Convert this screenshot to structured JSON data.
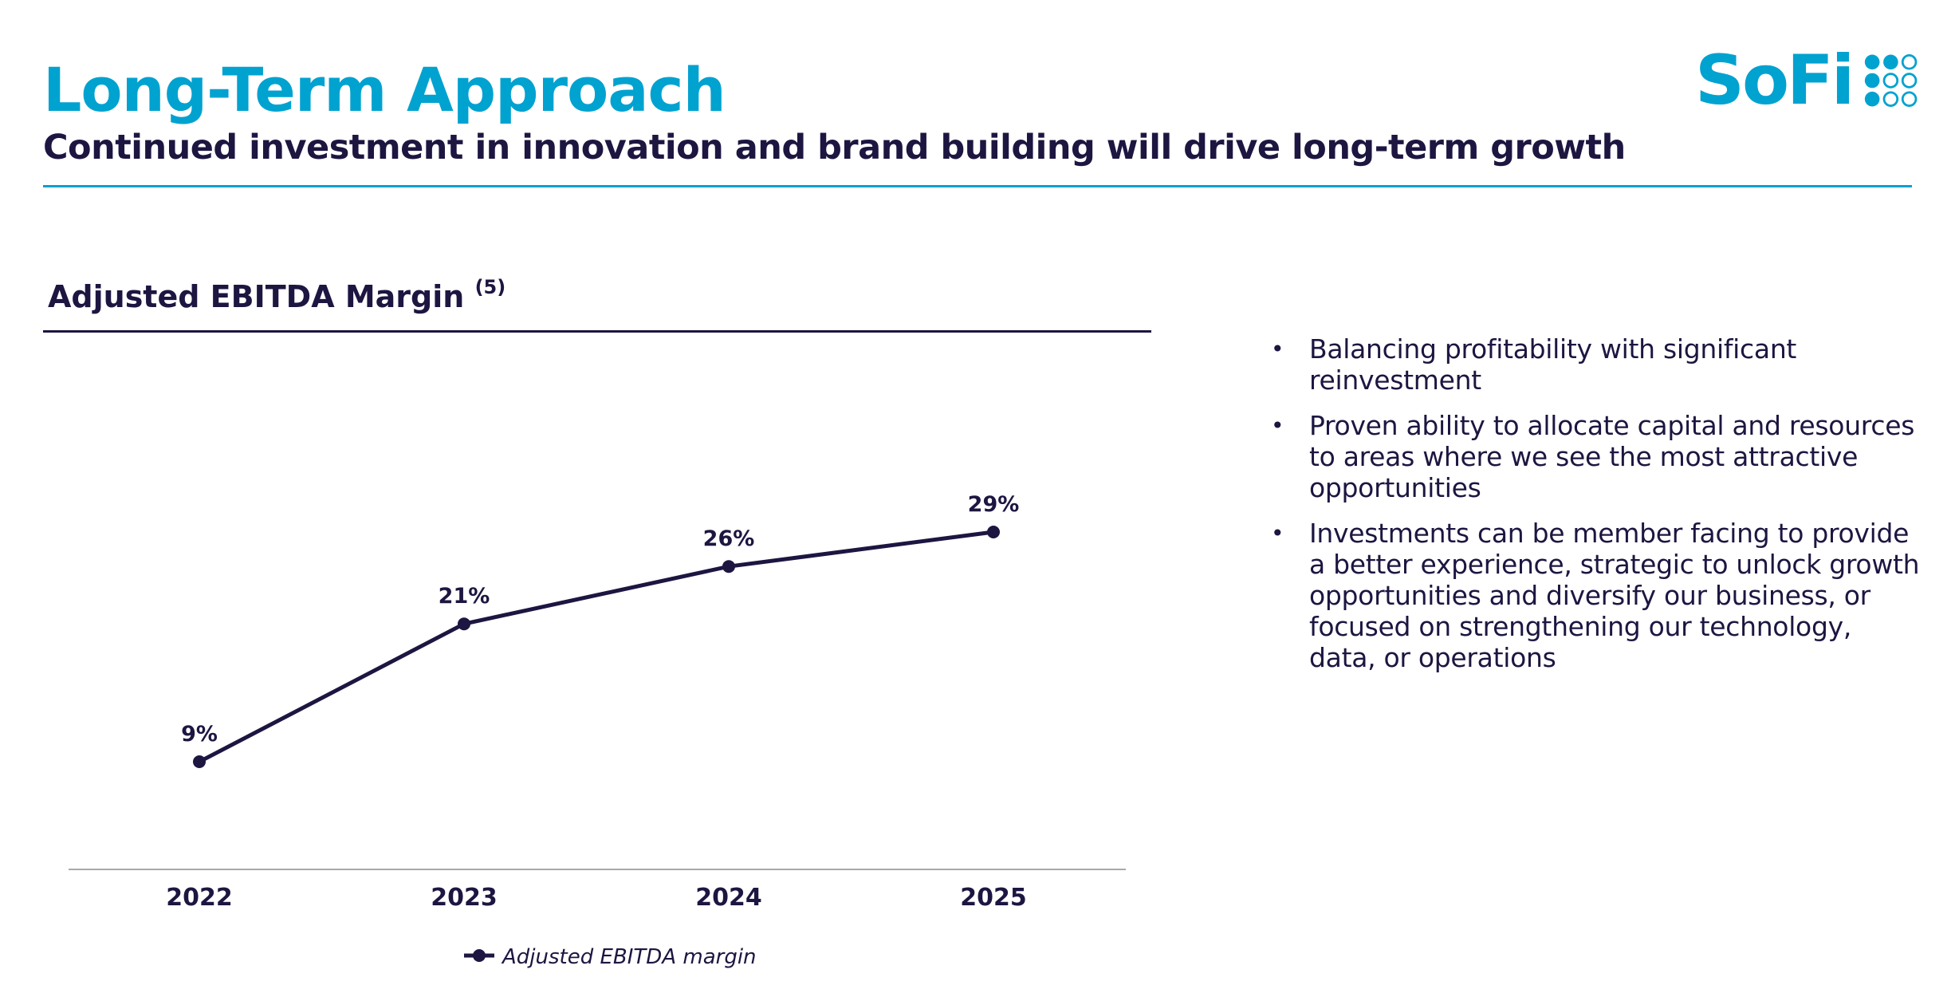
{
  "header": {
    "title": "Long-Term Approach",
    "subtitle": "Continued investment in innovation and brand building will drive long-term growth",
    "logo_text": "SoFi",
    "accent_color": "#00a2d0",
    "navy_color": "#1c1641"
  },
  "chart_section": {
    "title": "Adjusted EBITDA Margin",
    "footnote": "(5)"
  },
  "chart_data": {
    "type": "line",
    "title": "Adjusted EBITDA Margin",
    "xlabel": "",
    "ylabel": "",
    "categories": [
      "2022",
      "2023",
      "2024",
      "2025"
    ],
    "series": [
      {
        "name": "Adjusted EBITDA margin",
        "values": [
          9,
          21,
          26,
          29
        ],
        "labels": [
          "9%",
          "21%",
          "26%",
          "29%"
        ],
        "color": "#1c1641"
      }
    ],
    "ylim": [
      0,
      40
    ],
    "grid": false,
    "legend": "bottom-center"
  },
  "bullets": [
    "Balancing profitability with significant reinvestment",
    "Proven ability to allocate capital and resources to areas where we see the most attractive opportunities",
    "Investments can be member facing to provide a better experience, strategic to unlock growth opportunities and diversify our business, or focused on strengthening our technology, data, or operations"
  ],
  "bullet_glyph": "•"
}
